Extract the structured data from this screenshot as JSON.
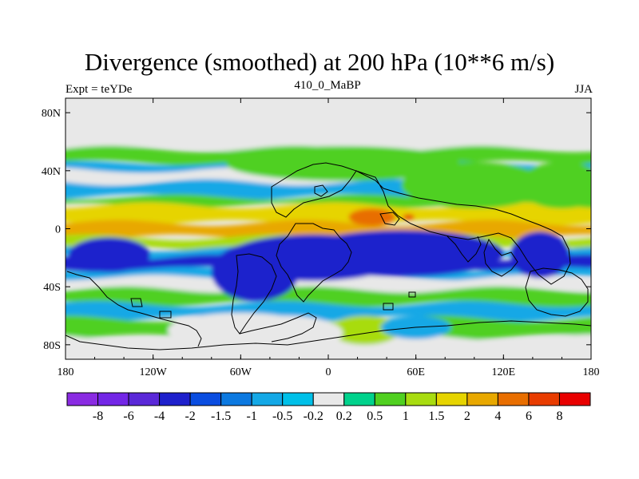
{
  "title": "Divergence (smoothed) at 200 hPa (10**6 m/s)",
  "subtitle_left": "Expt = teYDe",
  "subtitle_center": "410_0_MaBP",
  "subtitle_right": "JJA",
  "colors": {
    "background_fill": "#e8e8e8",
    "coastline": "#000000"
  },
  "chart_data": {
    "type": "heatmap",
    "title": "Divergence (smoothed) at 200 hPa (10**6 m/s)",
    "variable": "Divergence (smoothed)",
    "level": "200 hPa",
    "units": "10**6 m/s",
    "x_range": [
      -180,
      180
    ],
    "y_range": [
      -90,
      90
    ],
    "x_ticks": [
      {
        "value": -180,
        "label": "180"
      },
      {
        "value": -120,
        "label": "120W"
      },
      {
        "value": -60,
        "label": "60W"
      },
      {
        "value": 0,
        "label": "0"
      },
      {
        "value": 60,
        "label": "60E"
      },
      {
        "value": 120,
        "label": "120E"
      },
      {
        "value": 180,
        "label": "180"
      }
    ],
    "y_ticks": [
      {
        "value": 80,
        "label": "80N"
      },
      {
        "value": 40,
        "label": "40N"
      },
      {
        "value": 0,
        "label": "0"
      },
      {
        "value": -40,
        "label": "40S"
      },
      {
        "value": -80,
        "label": "80S"
      }
    ],
    "colorbar": {
      "colors": [
        "#8a2be2",
        "#7326e6",
        "#5a28d8",
        "#1e20cc",
        "#0a4de0",
        "#0c79e0",
        "#14a8e6",
        "#00c0e8",
        "#e8e8e8",
        "#00d28c",
        "#50d020",
        "#a8dc10",
        "#e6d400",
        "#e8a800",
        "#e86e00",
        "#e83c00",
        "#e80000"
      ],
      "levels": [
        "-8",
        "-6",
        "-4",
        "-2",
        "-1.5",
        "-1",
        "-0.5",
        "-0.2",
        "0.2",
        "0.5",
        "1",
        "1.5",
        "2",
        "4",
        "6",
        "8"
      ]
    },
    "field_bands": [
      {
        "lat_from": 90,
        "lat_to": 55,
        "value": 0
      },
      {
        "lat_from": 55,
        "lat_to": 45,
        "value": 0.6
      },
      {
        "lat_from": 45,
        "lat_to": 40,
        "value": -0.6
      },
      {
        "lat_from": 40,
        "lat_to": 32,
        "value": 0.1
      },
      {
        "lat_from": 32,
        "lat_to": 22,
        "value": -0.8
      },
      {
        "lat_from": 22,
        "lat_to": 16,
        "value": 0.8
      },
      {
        "lat_from": 16,
        "lat_to": 4,
        "value": 1.8
      },
      {
        "lat_from": 4,
        "lat_to": -6,
        "value": 2.5
      },
      {
        "lat_from": -6,
        "lat_to": -14,
        "value": 1.2
      },
      {
        "lat_from": -14,
        "lat_to": -20,
        "value": -0.7
      },
      {
        "lat_from": -20,
        "lat_to": -28,
        "value": -2.5
      },
      {
        "lat_from": -28,
        "lat_to": -34,
        "value": -0.7
      },
      {
        "lat_from": -34,
        "lat_to": -42,
        "value": 0.1
      },
      {
        "lat_from": -42,
        "lat_to": -52,
        "value": 0.8
      },
      {
        "lat_from": -52,
        "lat_to": -62,
        "value": -0.8
      },
      {
        "lat_from": -62,
        "lat_to": -75,
        "value": 0.6
      },
      {
        "lat_from": -75,
        "lat_to": -90,
        "value": 0
      }
    ],
    "features": [
      {
        "lon": 30,
        "lat": 8,
        "value": 5,
        "rx": 8,
        "ry": 3
      },
      {
        "lon": 55,
        "lat": 8,
        "value": 6,
        "rx": 2,
        "ry": 1
      },
      {
        "lon": 85,
        "lat": -15,
        "value": -4,
        "rx": 2,
        "ry": 1.5
      },
      {
        "lon": 145,
        "lat": -18,
        "value": -4,
        "rx": 10,
        "ry": 8
      },
      {
        "lon": -150,
        "lat": -18,
        "value": -4,
        "rx": 14,
        "ry": 6
      },
      {
        "lon": -10,
        "lat": -20,
        "value": -4,
        "rx": 30,
        "ry": 8
      },
      {
        "lon": 50,
        "lat": -17,
        "value": -2.5,
        "rx": 35,
        "ry": 8
      },
      {
        "lon": -50,
        "lat": -30,
        "value": -2.5,
        "rx": 15,
        "ry": 10
      },
      {
        "lon": 100,
        "lat": 30,
        "value": 0.8,
        "rx": 25,
        "ry": 8
      },
      {
        "lon": 160,
        "lat": 30,
        "value": 0.6,
        "rx": 15,
        "ry": 8
      },
      {
        "lon": 10,
        "lat": 45,
        "value": 0.6,
        "rx": 40,
        "ry": 6
      },
      {
        "lon": -60,
        "lat": -70,
        "value": 0,
        "rx": 25,
        "ry": 6
      },
      {
        "lon": 25,
        "lat": -70,
        "value": 1.2,
        "rx": 12,
        "ry": 5
      },
      {
        "lon": 60,
        "lat": -68,
        "value": -0.8,
        "rx": 12,
        "ry": 4
      },
      {
        "lon": -30,
        "lat": -72,
        "value": 0,
        "rx": 20,
        "ry": 6
      }
    ]
  }
}
